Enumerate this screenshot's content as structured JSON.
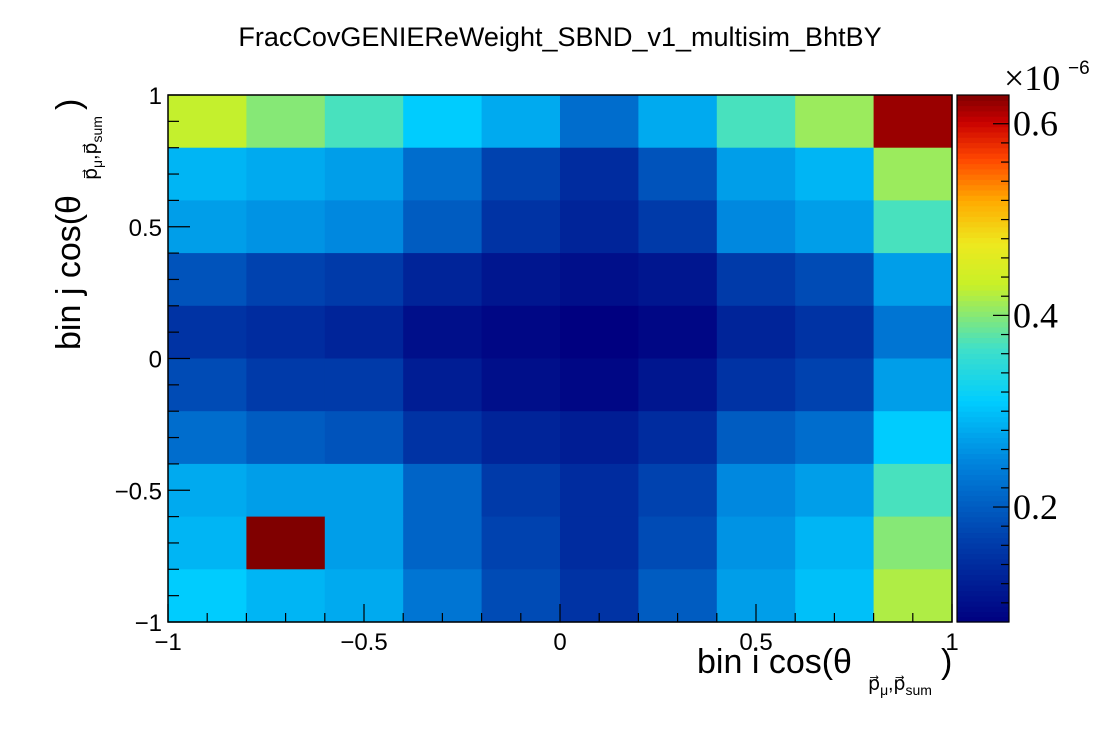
{
  "chart_data": {
    "type": "heatmap",
    "title": "FracCovGENIEReWeight_SBND_v1_multisim_BhtBY",
    "xlabel_prefix": "bin i cos(θ",
    "xlabel_sub": "p⃗_{μ},p⃗_{sum}",
    "xlabel_suffix": ")",
    "ylabel_prefix": "bin j cos(θ",
    "ylabel_suffix": ")",
    "xlim": [
      -1,
      1
    ],
    "ylim": [
      -1,
      1
    ],
    "nbins_x": 10,
    "nbins_y": 10,
    "x_ticks": [
      "−1",
      "−0.5",
      "0",
      "0.5",
      "1"
    ],
    "y_ticks": [
      "−1",
      "−0.5",
      "0",
      "0.5",
      "1"
    ],
    "z_ticks": [
      "0.2",
      "0.4",
      "0.6"
    ],
    "z_tick_values": [
      0.2,
      0.4,
      0.6
    ],
    "z_multiplier": "×10",
    "z_exponent": "−6",
    "zlim": [
      0.08,
      0.63
    ],
    "colormap": "root-rainbow",
    "grid": false,
    "rows_top_to_bottom": [
      [
        0.43,
        0.4,
        0.37,
        0.31,
        0.28,
        0.22,
        0.28,
        0.37,
        0.41,
        0.62
      ],
      [
        0.29,
        0.28,
        0.27,
        0.22,
        0.17,
        0.14,
        0.19,
        0.27,
        0.29,
        0.41
      ],
      [
        0.27,
        0.26,
        0.25,
        0.2,
        0.15,
        0.13,
        0.16,
        0.25,
        0.27,
        0.37
      ],
      [
        0.19,
        0.17,
        0.16,
        0.13,
        0.11,
        0.1,
        0.11,
        0.16,
        0.18,
        0.27
      ],
      [
        0.15,
        0.14,
        0.13,
        0.1,
        0.09,
        0.08,
        0.09,
        0.13,
        0.15,
        0.23
      ],
      [
        0.18,
        0.16,
        0.16,
        0.12,
        0.1,
        0.09,
        0.11,
        0.15,
        0.17,
        0.27
      ],
      [
        0.22,
        0.2,
        0.19,
        0.15,
        0.13,
        0.12,
        0.14,
        0.2,
        0.22,
        0.31
      ],
      [
        0.28,
        0.27,
        0.27,
        0.21,
        0.16,
        0.14,
        0.17,
        0.25,
        0.27,
        0.37
      ],
      [
        0.29,
        0.63,
        0.27,
        0.21,
        0.17,
        0.14,
        0.18,
        0.26,
        0.29,
        0.4
      ],
      [
        0.31,
        0.29,
        0.28,
        0.23,
        0.18,
        0.15,
        0.2,
        0.27,
        0.3,
        0.42
      ]
    ]
  }
}
